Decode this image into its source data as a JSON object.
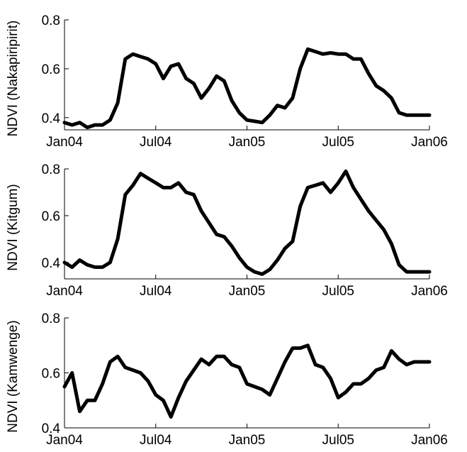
{
  "style": {
    "line_color": "#000000",
    "background": "#ffffff"
  },
  "chart_data": [
    {
      "type": "line",
      "ylabel": "NDVI (Nakapiripirit)",
      "ylim": [
        0.35,
        0.8
      ],
      "yticks": [
        0.4,
        0.6,
        0.8
      ],
      "ytick_labels": [
        "0.4",
        "0.6",
        "0.8"
      ],
      "xticks": [
        0,
        6,
        12,
        18,
        24
      ],
      "xtick_labels": [
        "Jan04",
        "Jul04",
        "Jan05",
        "Jul05",
        "Jan06"
      ],
      "grid": false,
      "series": [
        {
          "x": [
            0,
            0.5,
            1,
            1.5,
            2,
            2.5,
            3,
            3.5,
            4,
            4.5,
            5,
            5.5,
            6,
            6.5,
            7,
            7.5,
            8,
            8.5,
            9,
            9.5,
            10,
            10.5,
            11,
            11.5,
            12,
            12.5,
            13,
            13.5,
            14,
            14.5,
            15,
            15.5,
            16,
            16.5,
            17,
            17.5,
            18,
            18.5,
            19,
            19.5,
            20,
            20.5,
            21,
            21.5,
            22,
            22.5,
            23,
            23.5,
            24
          ],
          "values": [
            0.38,
            0.37,
            0.38,
            0.36,
            0.37,
            0.37,
            0.39,
            0.46,
            0.64,
            0.66,
            0.65,
            0.64,
            0.62,
            0.56,
            0.61,
            0.62,
            0.56,
            0.54,
            0.48,
            0.52,
            0.57,
            0.55,
            0.47,
            0.42,
            0.39,
            0.385,
            0.38,
            0.41,
            0.45,
            0.44,
            0.48,
            0.6,
            0.68,
            0.67,
            0.66,
            0.665,
            0.66,
            0.66,
            0.64,
            0.64,
            0.58,
            0.53,
            0.51,
            0.48,
            0.42,
            0.41,
            0.41,
            0.41,
            0.41
          ]
        }
      ]
    },
    {
      "type": "line",
      "ylabel": "NDVI (Kitgum)",
      "ylim": [
        0.33,
        0.8
      ],
      "yticks": [
        0.4,
        0.6,
        0.8
      ],
      "ytick_labels": [
        "0.4",
        "0.6",
        "0.8"
      ],
      "xticks": [
        0,
        6,
        12,
        18,
        24
      ],
      "xtick_labels": [
        "Jan04",
        "Jul04",
        "Jan05",
        "Jul05",
        "Jan06"
      ],
      "grid": false,
      "series": [
        {
          "x": [
            0,
            0.5,
            1,
            1.5,
            2,
            2.5,
            3,
            3.5,
            4,
            4.5,
            5,
            5.5,
            6,
            6.5,
            7,
            7.5,
            8,
            8.5,
            9,
            9.5,
            10,
            10.5,
            11,
            11.5,
            12,
            12.5,
            13,
            13.5,
            14,
            14.5,
            15,
            15.5,
            16,
            16.5,
            17,
            17.5,
            18,
            18.5,
            19,
            19.5,
            20,
            20.5,
            21,
            21.5,
            22,
            22.5,
            23,
            23.5,
            24
          ],
          "values": [
            0.4,
            0.38,
            0.41,
            0.39,
            0.38,
            0.38,
            0.4,
            0.5,
            0.69,
            0.73,
            0.78,
            0.76,
            0.74,
            0.72,
            0.72,
            0.74,
            0.7,
            0.69,
            0.62,
            0.57,
            0.52,
            0.51,
            0.47,
            0.42,
            0.38,
            0.36,
            0.35,
            0.37,
            0.41,
            0.46,
            0.49,
            0.64,
            0.72,
            0.73,
            0.74,
            0.7,
            0.74,
            0.79,
            0.72,
            0.67,
            0.62,
            0.58,
            0.54,
            0.48,
            0.39,
            0.36,
            0.36,
            0.36,
            0.36
          ]
        }
      ]
    },
    {
      "type": "line",
      "ylabel": "NDVI (Kamwenge)",
      "ylim": [
        0.4,
        0.8
      ],
      "yticks": [
        0.4,
        0.6,
        0.8
      ],
      "ytick_labels": [
        "0.4",
        "0.6",
        "0.8"
      ],
      "xticks": [
        0,
        6,
        12,
        18,
        24
      ],
      "xtick_labels": [
        "Jan04",
        "Jul04",
        "Jan05",
        "Jul05",
        "Jan06"
      ],
      "grid": false,
      "series": [
        {
          "x": [
            0,
            0.5,
            1,
            1.5,
            2,
            2.5,
            3,
            3.5,
            4,
            4.5,
            5,
            5.5,
            6,
            6.5,
            7,
            7.5,
            8,
            8.5,
            9,
            9.5,
            10,
            10.5,
            11,
            11.5,
            12,
            12.5,
            13,
            13.5,
            14,
            14.5,
            15,
            15.5,
            16,
            16.5,
            17,
            17.5,
            18,
            18.5,
            19,
            19.5,
            20,
            20.5,
            21,
            21.5,
            22,
            22.5,
            23,
            23.5,
            24
          ],
          "values": [
            0.55,
            0.6,
            0.46,
            0.5,
            0.5,
            0.56,
            0.64,
            0.66,
            0.62,
            0.61,
            0.6,
            0.57,
            0.52,
            0.5,
            0.44,
            0.51,
            0.57,
            0.61,
            0.65,
            0.63,
            0.66,
            0.66,
            0.63,
            0.62,
            0.56,
            0.55,
            0.54,
            0.52,
            0.58,
            0.64,
            0.69,
            0.69,
            0.7,
            0.63,
            0.62,
            0.58,
            0.51,
            0.53,
            0.56,
            0.56,
            0.58,
            0.61,
            0.62,
            0.68,
            0.65,
            0.63,
            0.64,
            0.64,
            0.64
          ]
        }
      ]
    }
  ]
}
